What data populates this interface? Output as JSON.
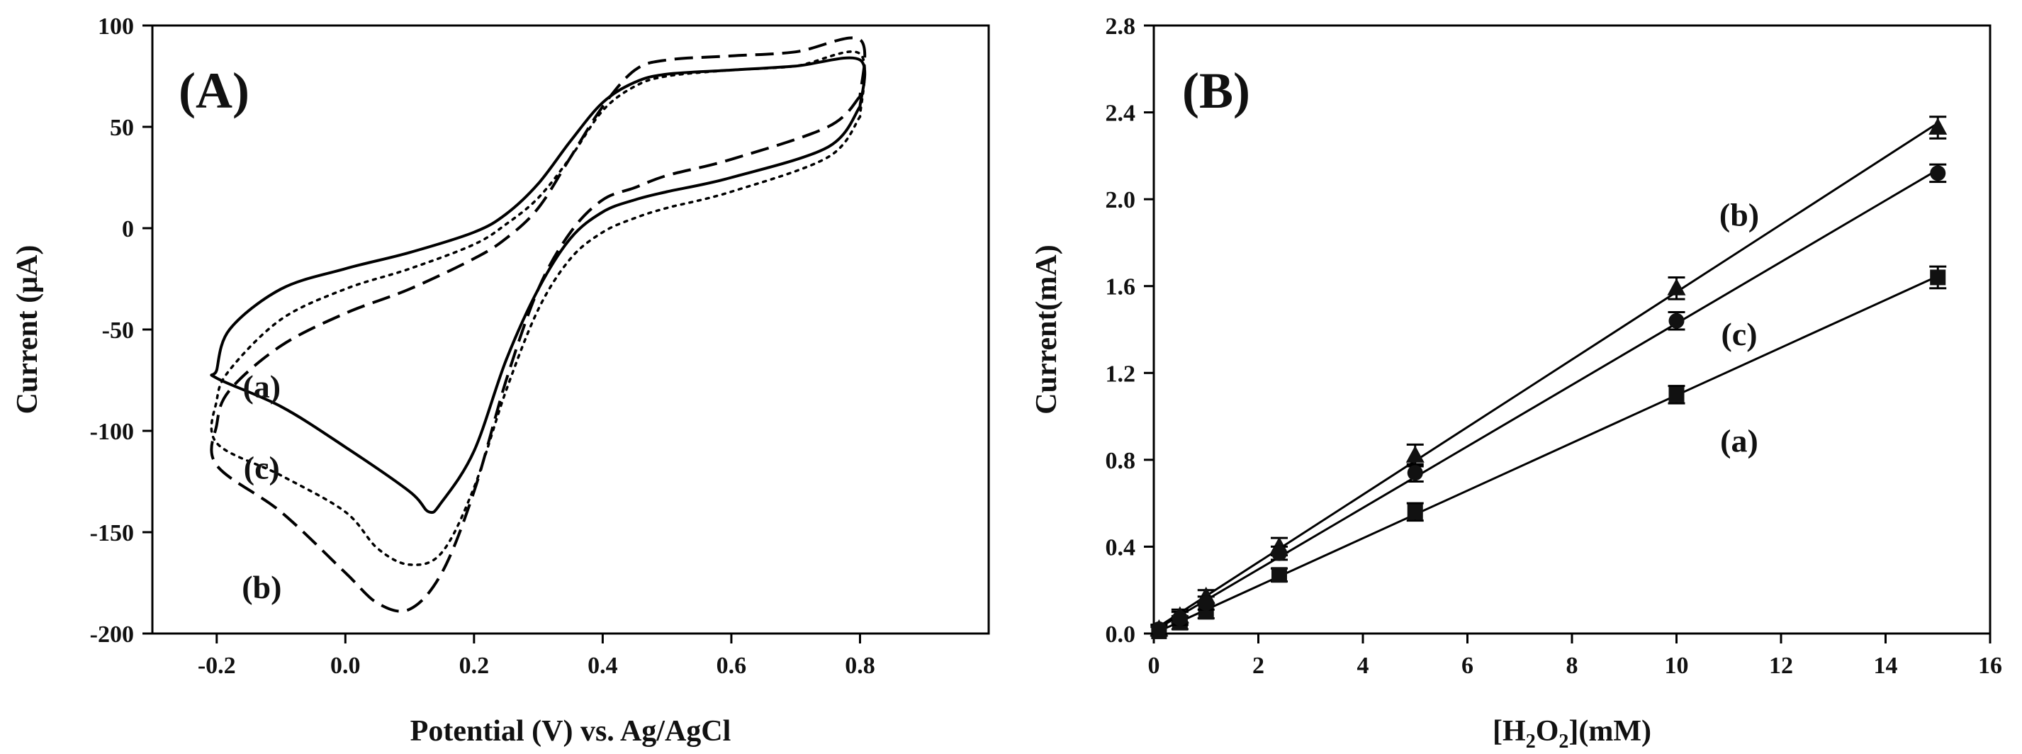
{
  "chart_data": [
    {
      "type": "line",
      "panel_label": "(A)",
      "xlabel": "Potential (V) vs. Ag/AgCl",
      "ylabel": "Current (μA)",
      "xlim": [
        -0.3,
        1.0
      ],
      "ylim": [
        -200,
        100
      ],
      "xticks": [
        -0.2,
        0.0,
        0.2,
        0.4,
        0.6,
        0.8
      ],
      "xtick_labels": [
        "-0.2",
        "0.0",
        "0.2",
        "0.4",
        "0.6",
        "0.8"
      ],
      "yticks": [
        -200,
        -150,
        -100,
        -50,
        0,
        50,
        100
      ],
      "ytick_labels": [
        "-200",
        "-150",
        "-100",
        "-50",
        "0",
        "50",
        "100"
      ],
      "series": [
        {
          "name": "(a)",
          "style": "solid",
          "x": [
            0.8,
            0.75,
            0.6,
            0.5,
            0.45,
            0.4,
            0.35,
            0.3,
            0.25,
            0.2,
            0.15,
            0.13,
            0.1,
            0.0,
            -0.1,
            -0.2,
            -0.2,
            -0.18,
            -0.1,
            0.0,
            0.1,
            0.2,
            0.25,
            0.3,
            0.35,
            0.4,
            0.45,
            0.5,
            0.6,
            0.7,
            0.8,
            0.8
          ],
          "y": [
            60,
            40,
            25,
            18,
            14,
            8,
            -5,
            -30,
            -65,
            -110,
            -135,
            -140,
            -130,
            -108,
            -88,
            -74,
            -70,
            -50,
            -30,
            -20,
            -12,
            -2,
            7,
            22,
            43,
            62,
            72,
            76,
            78,
            80,
            83,
            60
          ]
        },
        {
          "name": "(b)",
          "style": "dashed",
          "x": [
            0.8,
            0.75,
            0.6,
            0.5,
            0.45,
            0.4,
            0.35,
            0.3,
            0.25,
            0.2,
            0.15,
            0.1,
            0.05,
            0.0,
            -0.1,
            -0.2,
            -0.2,
            -0.18,
            -0.1,
            0.0,
            0.1,
            0.2,
            0.25,
            0.3,
            0.35,
            0.4,
            0.45,
            0.5,
            0.6,
            0.7,
            0.8,
            0.8
          ],
          "y": [
            65,
            50,
            34,
            26,
            20,
            14,
            -2,
            -30,
            -75,
            -130,
            -170,
            -188,
            -185,
            -170,
            -140,
            -117,
            -97,
            -80,
            -58,
            -42,
            -30,
            -15,
            -5,
            10,
            35,
            60,
            78,
            83,
            85,
            87,
            93,
            65
          ]
        },
        {
          "name": "(c)",
          "style": "dotted",
          "x": [
            0.8,
            0.75,
            0.6,
            0.5,
            0.45,
            0.4,
            0.35,
            0.3,
            0.25,
            0.2,
            0.15,
            0.1,
            0.05,
            0.0,
            -0.1,
            -0.2,
            -0.2,
            -0.18,
            -0.1,
            0.0,
            0.1,
            0.2,
            0.25,
            0.3,
            0.35,
            0.4,
            0.45,
            0.5,
            0.6,
            0.7,
            0.8,
            0.8
          ],
          "y": [
            55,
            35,
            18,
            10,
            5,
            -2,
            -15,
            -40,
            -80,
            -128,
            -160,
            -166,
            -158,
            -140,
            -122,
            -106,
            -85,
            -70,
            -45,
            -30,
            -20,
            -8,
            2,
            15,
            35,
            58,
            70,
            75,
            78,
            80,
            86,
            55
          ]
        }
      ],
      "annotations": [
        {
          "text": "(a)",
          "x": -0.13,
          "y": -78
        },
        {
          "text": "(c)",
          "x": -0.13,
          "y": -118
        },
        {
          "text": "(b)",
          "x": -0.13,
          "y": -177
        }
      ]
    },
    {
      "type": "scatter",
      "panel_label": "(B)",
      "xlabel": "[H2O2](mM)",
      "xlabel_parts": {
        "pre": "[H",
        "sub1": "2",
        "mid": "O",
        "sub2": "2",
        "post": "](mM)"
      },
      "ylabel": "Current(mA)",
      "xlim": [
        0,
        16
      ],
      "ylim": [
        0.0,
        2.8
      ],
      "xticks": [
        0,
        2,
        4,
        6,
        8,
        10,
        12,
        14,
        16
      ],
      "xtick_labels": [
        "0",
        "2",
        "4",
        "6",
        "8",
        "10",
        "12",
        "14",
        "16"
      ],
      "yticks": [
        0.0,
        0.4,
        0.8,
        1.2,
        1.6,
        2.0,
        2.4,
        2.8
      ],
      "ytick_labels": [
        "0.0",
        "0.4",
        "0.8",
        "1.2",
        "1.6",
        "2.0",
        "2.4",
        "2.8"
      ],
      "series": [
        {
          "name": "(a)",
          "marker": "square",
          "x": [
            0.1,
            0.5,
            1.0,
            2.4,
            5.0,
            10.0,
            15.0
          ],
          "y": [
            0.01,
            0.05,
            0.1,
            0.27,
            0.56,
            1.1,
            1.64
          ],
          "err": [
            0.02,
            0.03,
            0.03,
            0.03,
            0.04,
            0.04,
            0.05
          ]
        },
        {
          "name": "(b)",
          "marker": "triangle",
          "x": [
            0.1,
            0.5,
            1.0,
            2.4,
            5.0,
            10.0,
            15.0
          ],
          "y": [
            0.02,
            0.08,
            0.17,
            0.4,
            0.82,
            1.59,
            2.33
          ],
          "err": [
            0.02,
            0.03,
            0.03,
            0.04,
            0.05,
            0.05,
            0.05
          ]
        },
        {
          "name": "(c)",
          "marker": "circle",
          "x": [
            0.1,
            0.5,
            1.0,
            2.4,
            5.0,
            10.0,
            15.0
          ],
          "y": [
            0.02,
            0.07,
            0.14,
            0.37,
            0.74,
            1.44,
            2.12
          ],
          "err": [
            0.02,
            0.03,
            0.03,
            0.03,
            0.04,
            0.04,
            0.04
          ]
        }
      ],
      "annotations": [
        {
          "text": "(b)",
          "x": 11.2,
          "y": 1.93
        },
        {
          "text": "(c)",
          "x": 11.2,
          "y": 1.38
        },
        {
          "text": "(a)",
          "x": 11.2,
          "y": 0.89
        }
      ]
    }
  ]
}
